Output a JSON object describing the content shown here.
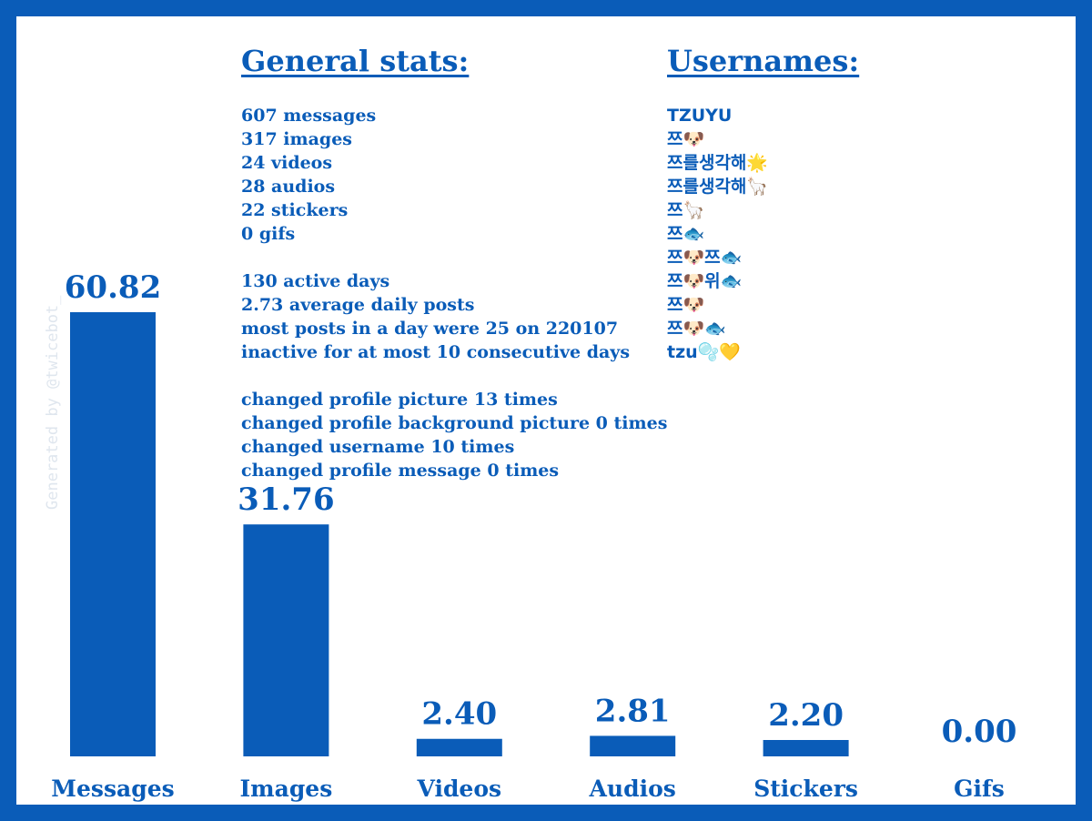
{
  "colors": {
    "accent": "#0a5cb8",
    "background": "#ffffff",
    "watermark": "#dfe6ee"
  },
  "watermark": "Generated by @twicebot_",
  "general_stats": {
    "heading": "General stats:",
    "counts": [
      "607 messages",
      "317 images",
      "24 videos",
      "28 audios",
      "22 stickers",
      "0 gifs"
    ],
    "activity": [
      "130 active days",
      "2.73 average daily posts",
      "most posts in a day were 25 on 220107",
      "inactive for at most 10 consecutive days"
    ],
    "profile": [
      "changed profile picture 13 times",
      "changed profile background picture 0 times",
      "changed username 10 times",
      "changed profile message 0 times"
    ]
  },
  "usernames": {
    "heading": "Usernames:",
    "items": [
      "TZUYU",
      "쯔🐶",
      "쯔를생각해🌟",
      "쯔를생각해🦙",
      "쯔🦙",
      "쯔🐟",
      "쯔🐶쯔🐟",
      "쯔🐶위🐟",
      "쯔🐶",
      "쯔🐶🐟",
      "tzu🫧💛"
    ]
  },
  "chart_data": {
    "type": "bar",
    "categories": [
      "Messages",
      "Images",
      "Videos",
      "Audios",
      "Stickers",
      "Gifs"
    ],
    "values": [
      60.82,
      31.76,
      2.4,
      2.81,
      2.2,
      0.0
    ],
    "value_labels": [
      "60.82",
      "31.76",
      "2.40",
      "2.81",
      "2.20",
      "0.00"
    ],
    "title": "",
    "xlabel": "",
    "ylabel": "",
    "ylim": [
      0,
      60.82
    ],
    "grid": false,
    "legend": "none"
  }
}
